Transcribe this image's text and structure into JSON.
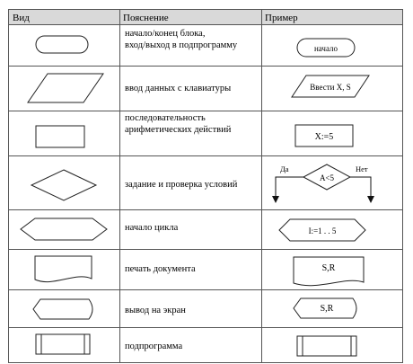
{
  "table": {
    "headers": {
      "kind": "Вид",
      "description": "Пояснение",
      "example": "Пример"
    },
    "rows": [
      {
        "shape": "terminator",
        "description": [
          "начало/конец блока,",
          "вход/выход в подпрограмму"
        ],
        "example": "начало"
      },
      {
        "shape": "data-input",
        "description": [
          "ввод данных с клавиатуры"
        ],
        "example": "Ввести X, S"
      },
      {
        "shape": "process",
        "description": [
          "последовательность",
          "арифметических действий"
        ],
        "example": "X:=5"
      },
      {
        "shape": "decision",
        "description": [
          "задание и проверка условий"
        ],
        "example": "A<5",
        "example_yes": "Да",
        "example_no": "Нет"
      },
      {
        "shape": "loop-start",
        "description": [
          "начало цикла"
        ],
        "example": "I:=1 . . 5"
      },
      {
        "shape": "document",
        "description": [
          "печать документа"
        ],
        "example": "S,R"
      },
      {
        "shape": "display",
        "description": [
          "вывод на экран"
        ],
        "example": "S,R"
      },
      {
        "shape": "subroutine",
        "description": [
          "подпрограмма"
        ],
        "example": ""
      }
    ]
  },
  "colors": {
    "header_bg": "#d9d9d9",
    "border": "#555555",
    "shape_stroke": "#222222",
    "text": "#111111"
  }
}
